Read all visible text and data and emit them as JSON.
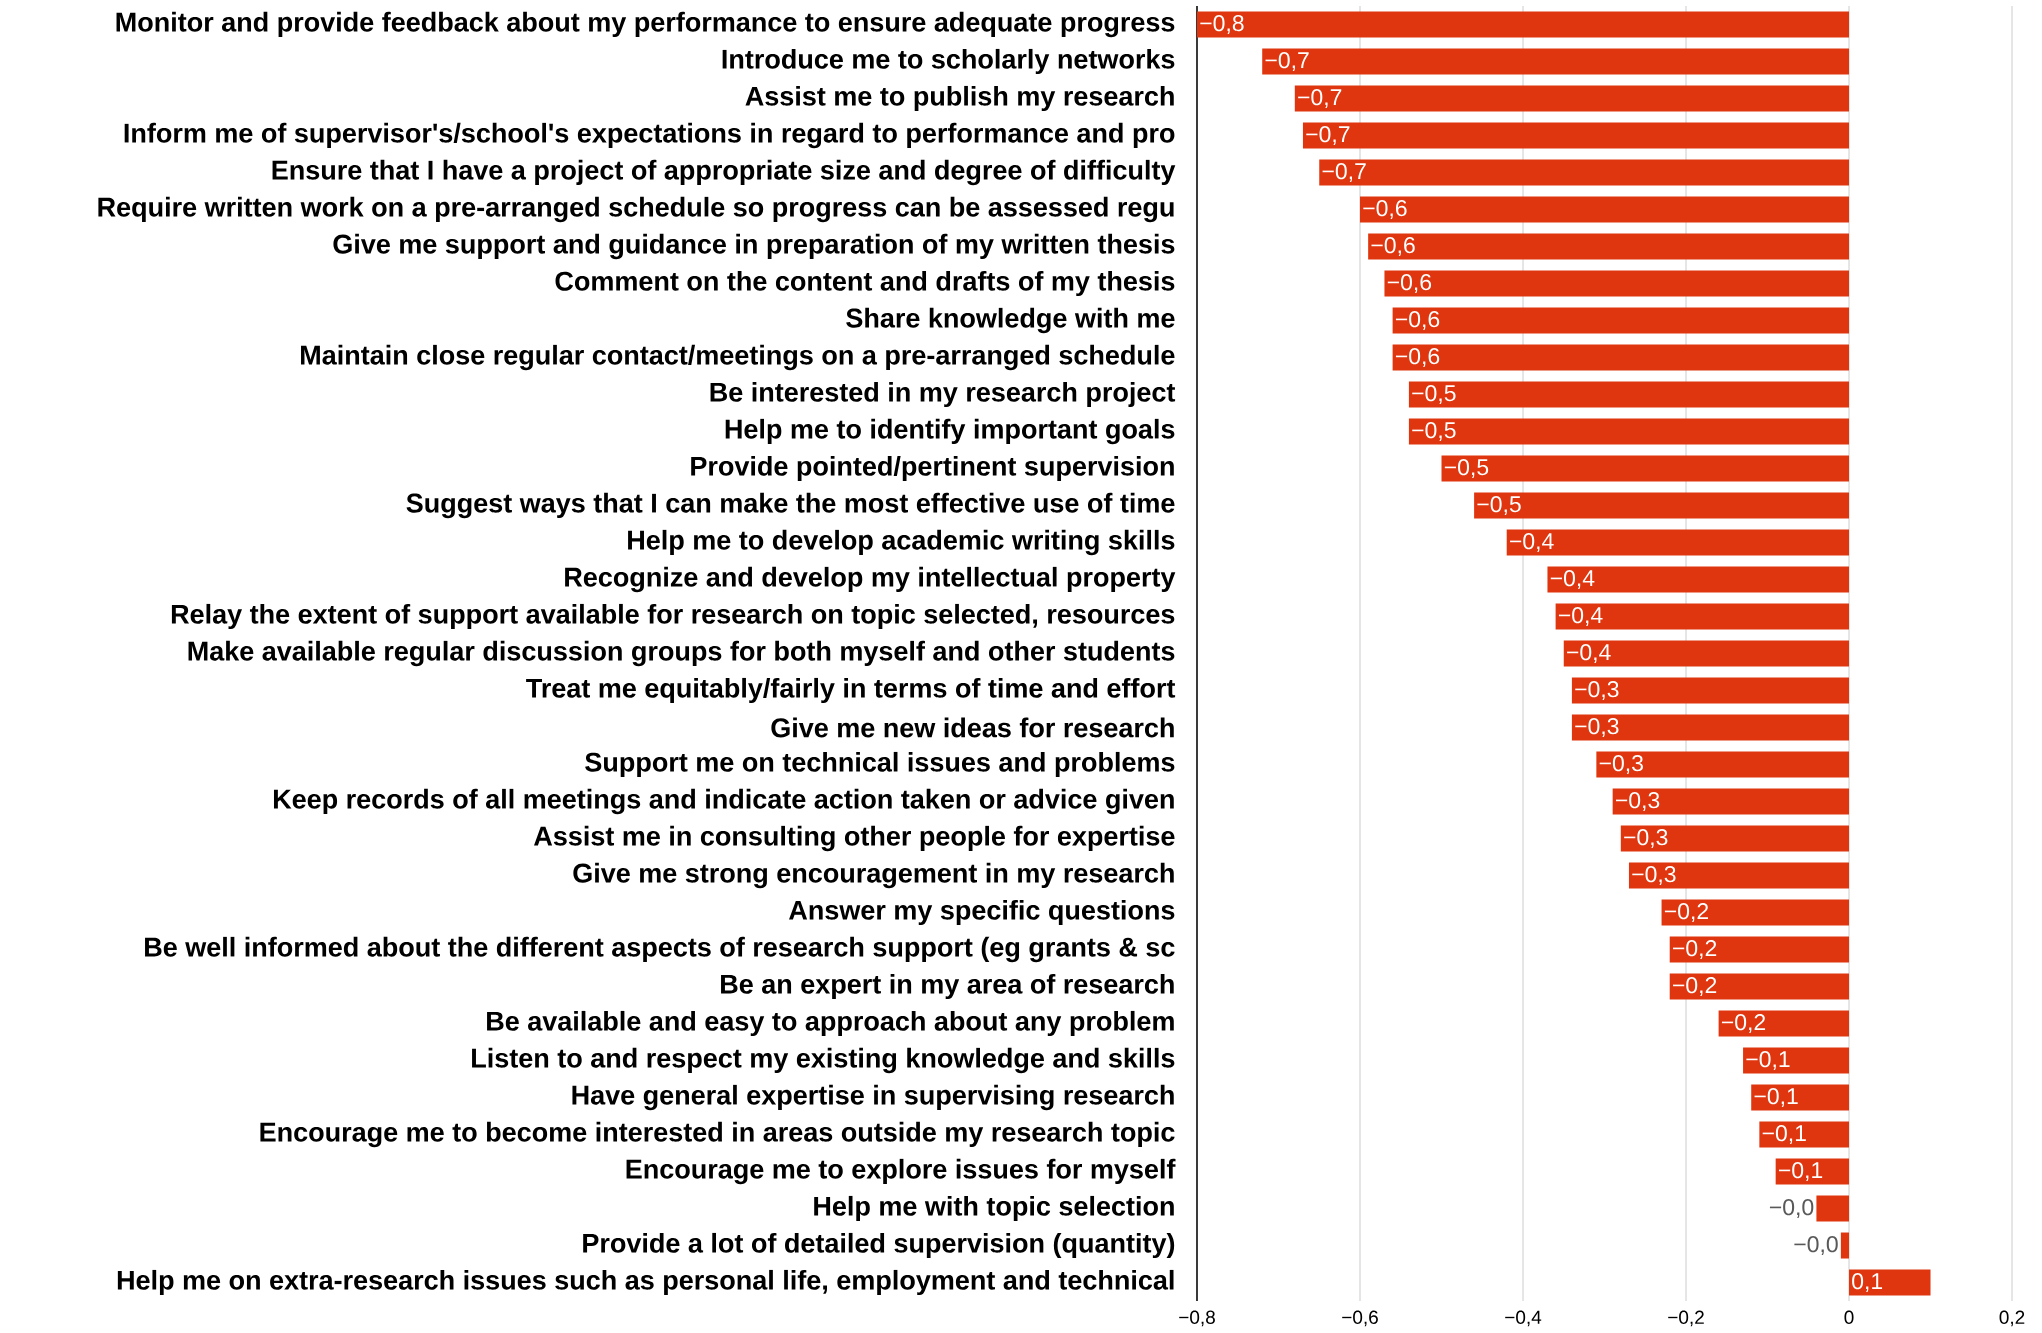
{
  "chart_data": {
    "type": "bar",
    "orientation": "horizontal",
    "categories": [
      "Monitor and provide feedback about my performance to ensure adequate progress",
      "Introduce me to scholarly networks",
      "Assist me to publish my research",
      "Inform me of supervisor's/school's expectations in regard to performance and pro",
      "Ensure that I have a project of appropriate size and degree of difficulty",
      "Require written work on a pre-arranged schedule so progress can be assessed regu",
      "Give me support and guidance in preparation of my written thesis",
      "Comment on the content and drafts of my thesis",
      "Share knowledge with me",
      "Maintain close regular contact/meetings on a pre-arranged schedule",
      "Be interested in my research project",
      "Help me to identify important goals",
      "Provide pointed/pertinent supervision",
      "Suggest ways that I can make the most effective use of time",
      "Help me to develop academic writing skills",
      "Recognize and develop my intellectual property",
      "Relay the extent of support available for research on topic selected, resources",
      "Make available regular discussion groups for both myself and other students",
      "Treat me equitably/fairly in terms of time and effort",
      "Give me new ideas for research",
      "Support me on technical issues and problems",
      "Keep records of all meetings and indicate action taken or advice given",
      "Assist me in consulting other people for expertise",
      "Give me strong encouragement in my research",
      "Answer my specific questions",
      "Be well informed about the different aspects of research support (eg grants & sc",
      "Be an expert in my area of research",
      "Be available and easy to approach about any problem",
      "Listen to and respect my existing knowledge and skills",
      "Have general expertise in supervising research",
      "Encourage me to become interested in areas outside my research topic",
      "Encourage me to explore issues for myself",
      "Help me with topic selection",
      "Provide a lot of detailed supervision (quantity)",
      "Help me on extra-research issues such as personal life, employment and technical"
    ],
    "values": [
      -0.8,
      -0.72,
      -0.68,
      -0.67,
      -0.65,
      -0.6,
      -0.59,
      -0.57,
      -0.56,
      -0.56,
      -0.54,
      -0.54,
      -0.5,
      -0.46,
      -0.42,
      -0.37,
      -0.36,
      -0.35,
      -0.34,
      -0.34,
      -0.31,
      -0.29,
      -0.28,
      -0.27,
      -0.23,
      -0.22,
      -0.22,
      -0.16,
      -0.13,
      -0.12,
      -0.11,
      -0.09,
      -0.04,
      -0.01,
      0.1
    ],
    "value_labels": [
      "−0,8",
      "−0,7",
      "−0,7",
      "−0,7",
      "−0,7",
      "−0,6",
      "−0,6",
      "−0,6",
      "−0,6",
      "−0,6",
      "−0,5",
      "−0,5",
      "−0,5",
      "−0,5",
      "−0,4",
      "−0,4",
      "−0,4",
      "−0,4",
      "−0,3",
      "−0,3",
      "−0,3",
      "−0,3",
      "−0,3",
      "−0,3",
      "−0,2",
      "−0,2",
      "−0,2",
      "−0,2",
      "−0,1",
      "−0,1",
      "−0,1",
      "−0,1",
      "−0,0",
      "−0,0",
      "0,1"
    ],
    "color": "#e0360f",
    "xlim": [
      -0.8,
      0.2
    ],
    "xticks": [
      {
        "value": -0.8,
        "label": "−0,8"
      },
      {
        "value": -0.6,
        "label": "−0,6"
      },
      {
        "value": -0.4,
        "label": "−0,4"
      },
      {
        "value": -0.2,
        "label": "−0,2"
      },
      {
        "value": 0,
        "label": "0"
      },
      {
        "value": 0.2,
        "label": "0,2"
      }
    ],
    "grid": "x"
  }
}
